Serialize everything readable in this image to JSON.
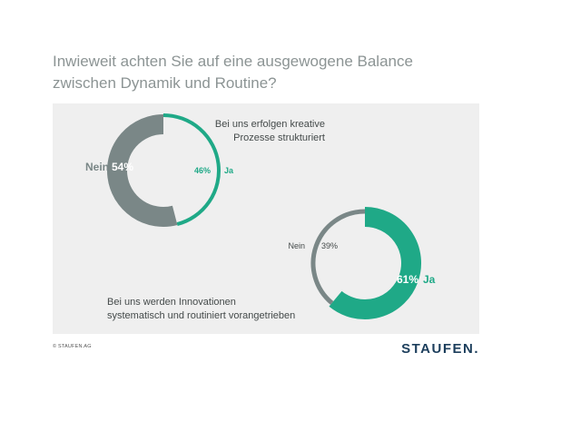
{
  "title": {
    "line1": "Inwieweit achten Sie auf eine ausgewogene Balance",
    "line2": "zwischen Dynamik und Routine?"
  },
  "colors": {
    "yes": "#1fa987",
    "no": "#7a8787",
    "panel": "#efefef"
  },
  "chart_data": [
    {
      "type": "pie",
      "caption_line1": "Bei uns erfolgen kreative",
      "caption_line2": "Prozesse strukturiert",
      "slices": [
        {
          "label": "Nein",
          "value": 54,
          "value_text": "54%"
        },
        {
          "label": "Ja",
          "value": 46,
          "value_text": "46%"
        }
      ]
    },
    {
      "type": "pie",
      "caption_line1": "Bei uns werden Innovationen",
      "caption_line2": "systematisch und routiniert vorangetrieben",
      "slices": [
        {
          "label": "Nein",
          "value": 39,
          "value_text": "39%"
        },
        {
          "label": "Ja",
          "value": 61,
          "value_text": "61%"
        }
      ]
    }
  ],
  "footer": {
    "copyright": "© STAUFEN.AG",
    "logo": "STAUFEN."
  }
}
